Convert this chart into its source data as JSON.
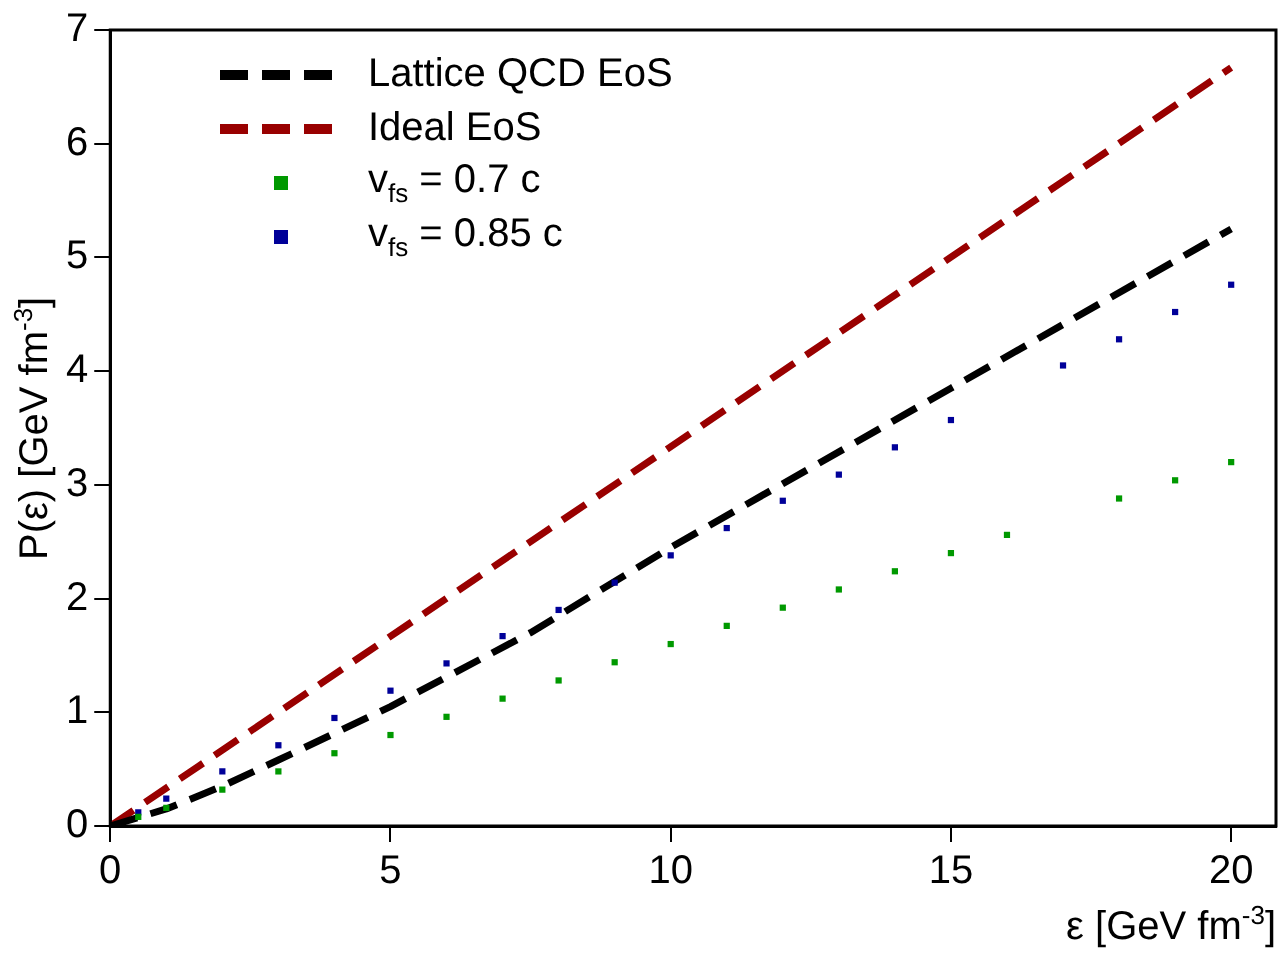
{
  "chart_data": {
    "type": "scatter",
    "xlabel": "ε [GeV fm$^{-3}$]",
    "ylabel": "P(ε) [GeV fm$^{-3}$]",
    "xlim": [
      0,
      20.8
    ],
    "ylim": [
      0,
      7
    ],
    "xticks": [
      0,
      5,
      10,
      15,
      20
    ],
    "yticks": [
      0,
      1,
      2,
      3,
      4,
      5,
      6,
      7
    ],
    "legend": "top left",
    "series": [
      {
        "name": "Lattice QCD EoS",
        "type": "line",
        "line_style": "dashed",
        "marker": "none",
        "color": "#000000",
        "x": [
          0,
          1,
          2,
          3,
          5,
          7.5,
          10,
          15,
          20
        ],
        "values": [
          0,
          0.15,
          0.35,
          0.58,
          1.05,
          1.7,
          2.45,
          3.85,
          5.25
        ]
      },
      {
        "name": "Ideal EoS",
        "type": "line",
        "line_style": "dashed",
        "marker": "none",
        "color": "#990000",
        "x": [
          0,
          20
        ],
        "values": [
          0,
          6.67
        ]
      },
      {
        "name": "v$_{fs}$ = 0.7 c",
        "type": "scatter",
        "marker": "square",
        "color": "#009900",
        "x": [
          0.5,
          1,
          2,
          3,
          4,
          5,
          6,
          7,
          8,
          9,
          10,
          11,
          12,
          13,
          14,
          15,
          16,
          18,
          19,
          20
        ],
        "values": [
          0.08,
          0.16,
          0.32,
          0.48,
          0.64,
          0.8,
          0.96,
          1.12,
          1.28,
          1.44,
          1.6,
          1.76,
          1.92,
          2.08,
          2.24,
          2.4,
          2.56,
          2.88,
          3.04,
          3.2
        ]
      },
      {
        "name": "v$_{fs}$ = 0.85 c",
        "type": "scatter",
        "marker": "square",
        "color": "#000099",
        "x": [
          0.5,
          1,
          2,
          3,
          4,
          5,
          6,
          7,
          8,
          9,
          10,
          11,
          12,
          13,
          14,
          15,
          17,
          18,
          19,
          20
        ],
        "values": [
          0.12,
          0.24,
          0.48,
          0.71,
          0.95,
          1.19,
          1.43,
          1.67,
          1.9,
          2.14,
          2.38,
          2.62,
          2.86,
          3.09,
          3.33,
          3.57,
          4.05,
          4.28,
          4.52,
          4.76
        ]
      }
    ]
  }
}
